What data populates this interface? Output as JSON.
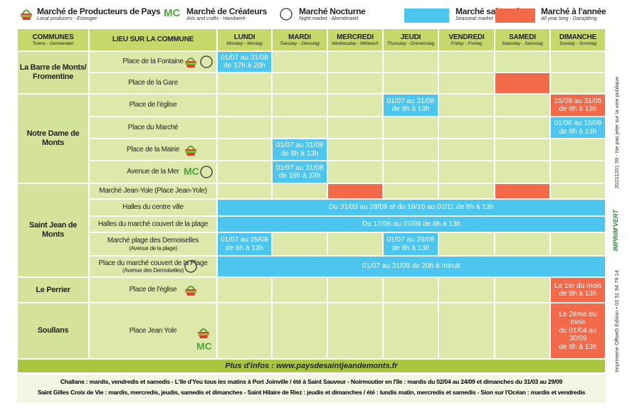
{
  "legend": {
    "producteurs": {
      "title": "Marché de Producteurs de Pays",
      "subtitle": "Local producers - Erzeuger"
    },
    "createurs": {
      "icon_text": "MC",
      "title": "Marché de Créateurs",
      "subtitle": "Arts and crafts - Handwerk"
    },
    "nocturne": {
      "title": "Marché Nocturne",
      "subtitle": "Night market - Abendmarkt"
    },
    "saisonnier": {
      "title": "Marché saisonnier",
      "subtitle": "Seasonal market - Saisonal"
    },
    "annee": {
      "title": "Marché à l'année",
      "subtitle": "All year long - Ganzjährig"
    }
  },
  "header": {
    "communes": {
      "title": "COMMUNES",
      "subtitle": "Towns - Gemeinden"
    },
    "lieu": {
      "title": "LIEU SUR LA COMMUNE"
    },
    "days": [
      {
        "name": "LUNDI",
        "subtitle": "Monday - Montag"
      },
      {
        "name": "MARDI",
        "subtitle": "Tuesday - Dienstag"
      },
      {
        "name": "MERCREDI",
        "subtitle": "Wednesday - Mittwoch"
      },
      {
        "name": "JEUDI",
        "subtitle": "Thursday - Donnerstag"
      },
      {
        "name": "VENDREDI",
        "subtitle": "Friday - Freitag"
      },
      {
        "name": "SAMEDI",
        "subtitle": "Saturday - Samstag"
      },
      {
        "name": "DIMANCHE",
        "subtitle": "Sunday - Sonntag"
      }
    ]
  },
  "communes": [
    {
      "name": "La Barre de Monts/\nFromentine",
      "places": [
        {
          "name": "Place de la Fontaine",
          "markets": [
            {
              "from": "LUNDI",
              "to": "LUNDI",
              "kind": "saisonnier",
              "text": "01/07 au 31/08\nde 17h à 20h"
            }
          ]
        },
        {
          "name": "Place de la Gare",
          "markets": [
            {
              "from": "SAMEDI",
              "to": "SAMEDI",
              "kind": "annee"
            }
          ]
        }
      ]
    },
    {
      "name": "Notre Dame de Monts",
      "places": [
        {
          "name": "Place de l'église",
          "markets": [
            {
              "from": "JEUDI",
              "to": "JEUDI",
              "kind": "saisonnier",
              "text": "01/07 au 31/08\nde 8h à 13h"
            },
            {
              "from": "DIMANCHE",
              "to": "DIMANCHE",
              "kind": "annee",
              "text": "15/09 au 31/05\nde 8h à 13h"
            }
          ]
        },
        {
          "name": "Place du Marché",
          "markets": [
            {
              "from": "DIMANCHE",
              "to": "DIMANCHE",
              "kind": "saisonnier",
              "text": "01/06 au 15/09\nde 8h à 13h"
            }
          ]
        },
        {
          "name": "Place de la Mairie",
          "markets": [
            {
              "from": "MARDI",
              "to": "MARDI",
              "kind": "saisonnier",
              "text": "01/07 au 31/08\nde 8h à 13h"
            }
          ]
        },
        {
          "name": "Avenue de la Mer",
          "markets": [
            {
              "from": "MARDI",
              "to": "MARDI",
              "kind": "saisonnier",
              "text": "01/07 au 31/08\nde 19h à 23h"
            }
          ]
        }
      ]
    },
    {
      "name": "Saint Jean de Monts",
      "places": [
        {
          "name": "Marché Jean-Yole (Place Jean-Yole)",
          "markets": [
            {
              "from": "MERCREDI",
              "to": "MERCREDI",
              "kind": "annee"
            },
            {
              "from": "SAMEDI",
              "to": "SAMEDI",
              "kind": "annee"
            }
          ]
        },
        {
          "name": "Halles du centre ville",
          "markets": [
            {
              "from": "LUNDI",
              "to": "DIMANCHE",
              "kind": "saisonnier",
              "text": "Du 31/03 au 28/09 et du 19/10 au 02/11 de 8h à 13h"
            }
          ]
        },
        {
          "name": "Halles du marché couvert de la plage",
          "markets": [
            {
              "from": "LUNDI",
              "to": "DIMANCHE",
              "kind": "saisonnier",
              "text": "Du 17/06 au 07/09 de 8h à 13h"
            }
          ]
        },
        {
          "name": "Marché plage des Demoiselles",
          "sub": "(Avenue de la plage)",
          "markets": [
            {
              "from": "LUNDI",
              "to": "LUNDI",
              "kind": "saisonnier",
              "text": "01/07 au 29/08\nde 8h à 13h"
            },
            {
              "from": "JEUDI",
              "to": "JEUDI",
              "kind": "saisonnier",
              "text": "01/07 au 29/08\nde 8h à 13h"
            }
          ]
        },
        {
          "name": "Place du marché couvert de la Plage",
          "sub": "(Avenue des Demoiselles)",
          "markets": [
            {
              "from": "LUNDI",
              "to": "DIMANCHE",
              "kind": "saisonnier",
              "text": "01/07 au 31/08 de 20h à minuit"
            }
          ]
        }
      ]
    },
    {
      "name": "Le Perrier",
      "places": [
        {
          "name": "Place de l'église",
          "markets": [
            {
              "from": "DIMANCHE",
              "to": "DIMANCHE",
              "kind": "annee",
              "text": "Le 1er du mois\nde 8h à 13h"
            }
          ]
        }
      ]
    },
    {
      "name": "Soullans",
      "places": [
        {
          "name": "Place Jean Yole",
          "markets": [
            {
              "from": "DIMANCHE",
              "to": "DIMANCHE",
              "kind": "annee",
              "text": "Le 2ème du mois\ndu 01/04 au 30/09\nde 8h à 13h"
            }
          ]
        }
      ]
    }
  ],
  "footer": {
    "info": "Plus d'infos : www.paysdesaintjeandemonts.fr",
    "lines": [
      "Challans : mardis, vendredis et samedis - L'île d'Yeu tous les matins à Port Joinville / été à Saint Sauveur - Noirmoutier en l'île : mardis du 02/04 au 24/09 et dimanches du 31/03 au 29/09",
      "Saint Gilles Croix de Vie : mardis, mercredis, jeudis, samedis et dimanches - Saint Hilaire de Riez : jeudis et dimanches / été : lundis matin, mercredis et samedis - Sion sur l'Océan : mardis et vendredis"
    ]
  },
  "side": {
    "printer": "Imprimerie Offset5 Édition • 02 51 94 79 14",
    "logo": "IMPRIM'VERT",
    "notice": "20231201 39 - Ne pas jeter sur la voie publique"
  }
}
